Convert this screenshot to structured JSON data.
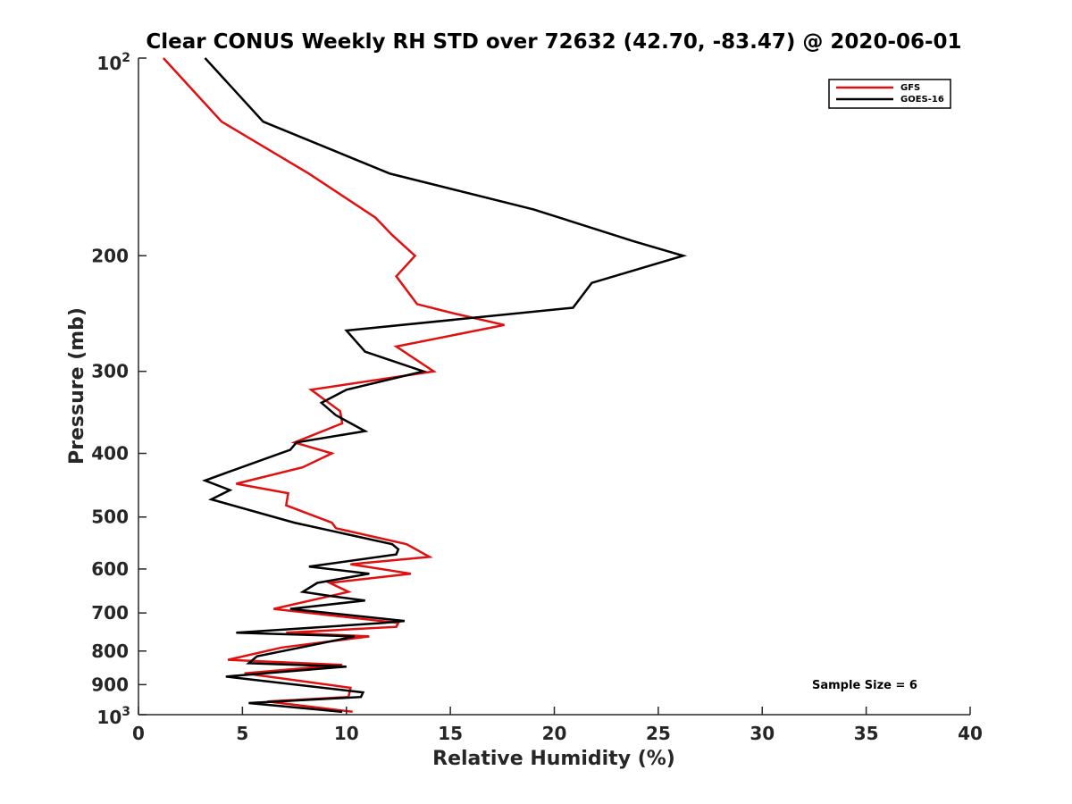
{
  "chart_data": {
    "type": "line",
    "title": "Clear CONUS Weekly RH STD over 72632 (42.70, -83.47) @ 2020-06-01",
    "xlabel": "Relative Humidity (%)",
    "ylabel": "Pressure (mb)",
    "xlim": [
      0,
      40
    ],
    "ylim": [
      100,
      1000
    ],
    "y_scale": "log",
    "y_reversed": true,
    "grid": false,
    "legend_position": "top-right",
    "x_ticks": [
      "0",
      "5",
      "10",
      "15",
      "20",
      "25",
      "30",
      "35",
      "40"
    ],
    "y_ticks": [
      "200",
      "300",
      "400",
      "500",
      "600",
      "700",
      "800",
      "900"
    ],
    "y_tick_values": [
      200,
      300,
      400,
      500,
      600,
      700,
      800,
      900
    ],
    "y_end_labels": {
      "top_base": "10",
      "top_exp": "2",
      "bottom_base": "10",
      "bottom_exp": "3"
    },
    "annotation": "Sample Size = 6",
    "series": [
      {
        "name": "GFS",
        "color": "#e01010",
        "points": [
          [
            1.2,
            100
          ],
          [
            4.0,
            125
          ],
          [
            8.2,
            150
          ],
          [
            11.4,
            175
          ],
          [
            12.2,
            186
          ],
          [
            13.3,
            200
          ],
          [
            12.4,
            215
          ],
          [
            13.4,
            237
          ],
          [
            15.2,
            245
          ],
          [
            17.6,
            255
          ],
          [
            12.4,
            275
          ],
          [
            14.2,
            300
          ],
          [
            8.3,
            320
          ],
          [
            9.7,
            345
          ],
          [
            9.8,
            360
          ],
          [
            7.5,
            385
          ],
          [
            9.3,
            400
          ],
          [
            7.9,
            420
          ],
          [
            4.7,
            445
          ],
          [
            7.2,
            460
          ],
          [
            7.1,
            480
          ],
          [
            9.3,
            510
          ],
          [
            9.5,
            520
          ],
          [
            12.9,
            550
          ],
          [
            14.0,
            575
          ],
          [
            10.2,
            590
          ],
          [
            13.1,
            610
          ],
          [
            9.2,
            630
          ],
          [
            10.1,
            650
          ],
          [
            6.5,
            690
          ],
          [
            12.5,
            725
          ],
          [
            12.4,
            735
          ],
          [
            7.1,
            750
          ],
          [
            11.1,
            760
          ],
          [
            6.9,
            790
          ],
          [
            4.3,
            825
          ],
          [
            9.8,
            840
          ],
          [
            5.1,
            865
          ],
          [
            10.2,
            910
          ],
          [
            10.1,
            940
          ],
          [
            6.2,
            955
          ],
          [
            10.3,
            990
          ]
        ]
      },
      {
        "name": "GOES-16",
        "color": "#000000",
        "points": [
          [
            3.2,
            100
          ],
          [
            6.0,
            125
          ],
          [
            12.1,
            150
          ],
          [
            19.0,
            170
          ],
          [
            23.8,
            190
          ],
          [
            26.2,
            200
          ],
          [
            21.8,
            220
          ],
          [
            20.9,
            240
          ],
          [
            10.0,
            260
          ],
          [
            10.9,
            280
          ],
          [
            13.7,
            300
          ],
          [
            10.0,
            320
          ],
          [
            8.8,
            335
          ],
          [
            9.5,
            350
          ],
          [
            10.9,
            370
          ],
          [
            7.6,
            385
          ],
          [
            7.3,
            395
          ],
          [
            4.5,
            425
          ],
          [
            3.2,
            440
          ],
          [
            4.4,
            455
          ],
          [
            3.5,
            470
          ],
          [
            7.5,
            510
          ],
          [
            12.2,
            550
          ],
          [
            12.5,
            560
          ],
          [
            12.4,
            570
          ],
          [
            8.2,
            595
          ],
          [
            11.1,
            610
          ],
          [
            8.6,
            630
          ],
          [
            7.9,
            650
          ],
          [
            9.3,
            660
          ],
          [
            10.9,
            670
          ],
          [
            7.3,
            690
          ],
          [
            12.8,
            720
          ],
          [
            11.8,
            725
          ],
          [
            4.7,
            750
          ],
          [
            10.4,
            760
          ],
          [
            7.8,
            790
          ],
          [
            5.7,
            815
          ],
          [
            5.3,
            835
          ],
          [
            10.0,
            845
          ],
          [
            4.2,
            875
          ],
          [
            10.8,
            925
          ],
          [
            10.7,
            940
          ],
          [
            5.3,
            960
          ],
          [
            9.8,
            990
          ]
        ]
      }
    ]
  }
}
